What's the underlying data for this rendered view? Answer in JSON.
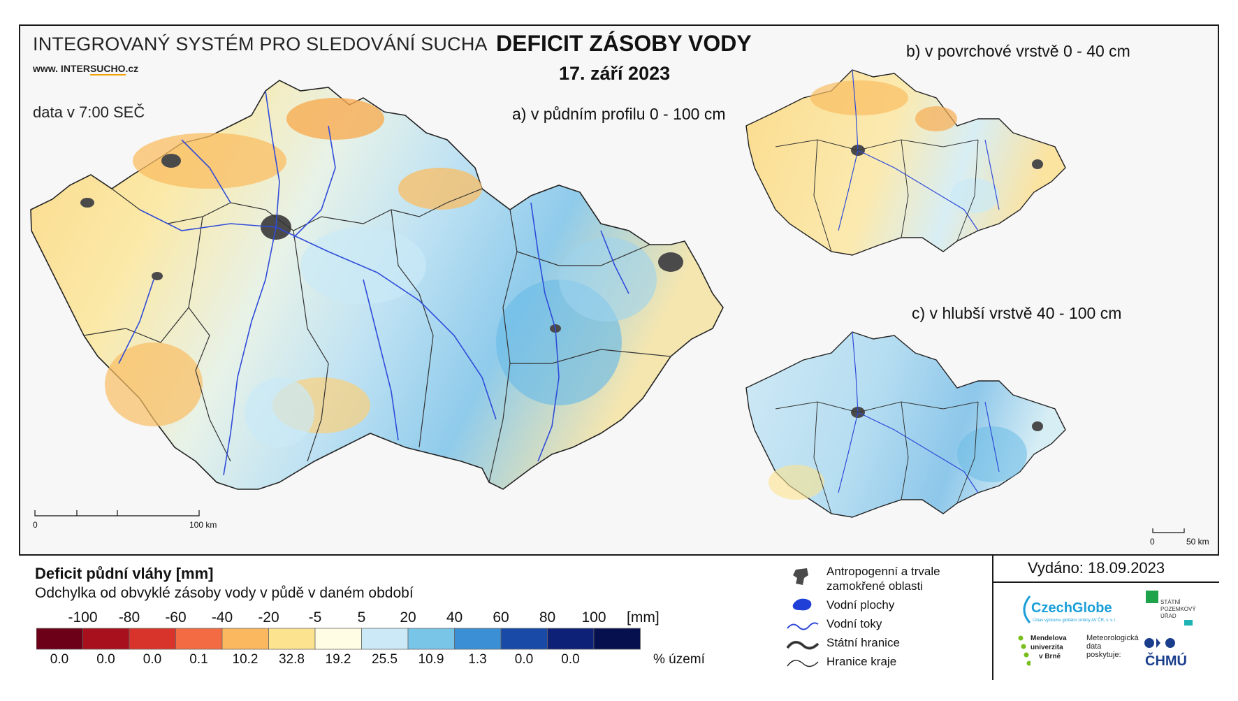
{
  "header": {
    "system_title": "INTEGROVANÝ SYSTÉM PRO SLEDOVÁNÍ SUCHA",
    "website_prefix": "www. INTER",
    "website_highlight": "SUCHO",
    "website_suffix": ".cz",
    "data_time": "data v 7:00 SEČ",
    "main_title": "DEFICIT ZÁSOBY VODY",
    "date": "17. září 2023"
  },
  "maps": {
    "a_title": "a) v půdním profilu 0 - 100 cm",
    "b_title": "b) v povrchové vrstvě 0 - 40 cm",
    "c_title": "c) v hlubší vrstvě 40 - 100 cm",
    "scale_main": {
      "zero": "0",
      "end": "100 km"
    },
    "scale_small": {
      "zero": "0",
      "end": "50 km"
    }
  },
  "legend": {
    "title": "Deficit půdní vláhy  [mm]",
    "subtitle": "Odchylka od obvyklé zásoby vody v půdě v daném období",
    "unit": "[mm]",
    "pct_unit": "% území",
    "thresholds": [
      "-100",
      "-80",
      "-60",
      "-40",
      "-20",
      "-5",
      "5",
      "20",
      "40",
      "60",
      "80",
      "100"
    ],
    "classes": [
      {
        "color": "#6b0018",
        "pct": "0.0"
      },
      {
        "color": "#a8101e",
        "pct": "0.0"
      },
      {
        "color": "#d9342b",
        "pct": "0.0"
      },
      {
        "color": "#f26b43",
        "pct": "0.1"
      },
      {
        "color": "#fbb85f",
        "pct": "10.2"
      },
      {
        "color": "#fbe38f",
        "pct": "32.8"
      },
      {
        "color": "#fffde3",
        "pct": "19.2"
      },
      {
        "color": "#cbe9f6",
        "pct": "25.5"
      },
      {
        "color": "#79c5e8",
        "pct": "10.9"
      },
      {
        "color": "#3b8fd4",
        "pct": "1.3"
      },
      {
        "color": "#1a4aa8",
        "pct": "0.0"
      },
      {
        "color": "#0d2276",
        "pct": "0.0"
      },
      {
        "color": "#06104f",
        "pct": ""
      }
    ]
  },
  "map_key": {
    "urban": "Antropogenní a trvale zamokřené oblasti",
    "urban_line1": "Antropogenní a trvale",
    "urban_line2": "zamokřené oblasti",
    "water_bodies": "Vodní plochy",
    "rivers": "Vodní toky",
    "state_border": "Státní hranice",
    "region_border": "Hranice kraje"
  },
  "issued": "Vydáno: 18.09.2023",
  "logos": {
    "czechglobe": "CzechGlobe",
    "czechglobe_sub": "Ústav výzkumu globální změny AV ČR, v. v. i.",
    "spu_line1": "STÁTNÍ",
    "spu_line2": "POZEMKOVÝ",
    "spu_line3": "ÚŘAD",
    "mendel_line1": "Mendelova",
    "mendel_line2": "univerzita",
    "mendel_line3": "v Brně",
    "meteo_line1": "Meteorologická",
    "meteo_line2": "data",
    "meteo_line3": "poskytuje:",
    "chmu": "ČHMÚ"
  },
  "colors": {
    "frame": "#1a1a1a",
    "river": "#2f4bd9",
    "urban": "#4a4a4a",
    "state_border": "#222222",
    "region_border": "#333333"
  }
}
